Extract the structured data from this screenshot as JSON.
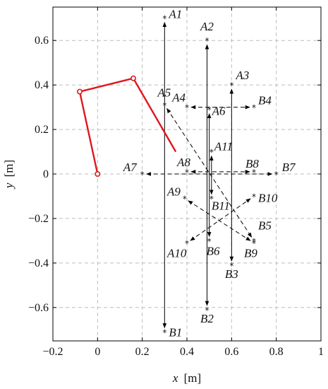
{
  "chart_data": {
    "type": "line",
    "xlabel": "x",
    "ylabel": "y",
    "unit": "[m]",
    "xlim": [
      -0.2,
      1.0
    ],
    "ylim": [
      -0.75,
      0.75
    ],
    "x_ticks": [
      -0.2,
      0,
      0.2,
      0.4,
      0.6,
      0.8,
      1
    ],
    "x_tick_labels": [
      "−0.2",
      "0",
      "0.2",
      "0.4",
      "0.6",
      "0.8",
      "1"
    ],
    "y_ticks": [
      -0.6,
      -0.4,
      -0.2,
      0,
      0.2,
      0.4,
      0.6
    ],
    "y_tick_labels": [
      "−0.6",
      "−0.4",
      "−0.2",
      "0",
      "0.2",
      "0.4",
      "0.6"
    ],
    "grid": true,
    "colors": {
      "arm": "#e0161d",
      "paths": "#000000",
      "grid": "#bdbdbd"
    },
    "arm": {
      "points": [
        [
          0.0,
          0.0
        ],
        [
          -0.08,
          0.37
        ],
        [
          0.16,
          0.43
        ],
        [
          0.35,
          0.1
        ]
      ],
      "joint_markers": [
        [
          0.0,
          0.0
        ],
        [
          -0.08,
          0.37
        ],
        [
          0.16,
          0.43
        ]
      ]
    },
    "points": [
      {
        "name": "A1",
        "x": 0.3,
        "y": 0.7
      },
      {
        "name": "B1",
        "x": 0.3,
        "y": -0.71
      },
      {
        "name": "A2",
        "x": 0.49,
        "y": 0.6
      },
      {
        "name": "B2",
        "x": 0.49,
        "y": -0.61
      },
      {
        "name": "A3",
        "x": 0.6,
        "y": 0.4
      },
      {
        "name": "B3",
        "x": 0.6,
        "y": -0.41
      },
      {
        "name": "A4",
        "x": 0.4,
        "y": 0.3
      },
      {
        "name": "B4",
        "x": 0.7,
        "y": 0.3
      },
      {
        "name": "A5",
        "x": 0.3,
        "y": 0.31
      },
      {
        "name": "B5",
        "x": 0.7,
        "y": -0.3
      },
      {
        "name": "A6",
        "x": 0.5,
        "y": 0.29
      },
      {
        "name": "B6",
        "x": 0.5,
        "y": -0.3
      },
      {
        "name": "A7",
        "x": 0.2,
        "y": 0.0
      },
      {
        "name": "B7",
        "x": 0.8,
        "y": 0.0
      },
      {
        "name": "A8",
        "x": 0.4,
        "y": 0.01
      },
      {
        "name": "B8",
        "x": 0.7,
        "y": 0.01
      },
      {
        "name": "A9",
        "x": 0.39,
        "y": -0.11
      },
      {
        "name": "B9",
        "x": 0.7,
        "y": -0.31
      },
      {
        "name": "A10",
        "x": 0.4,
        "y": -0.31
      },
      {
        "name": "B10",
        "x": 0.7,
        "y": -0.1
      },
      {
        "name": "A11",
        "x": 0.51,
        "y": 0.1
      },
      {
        "name": "B11",
        "x": 0.51,
        "y": -0.11
      }
    ],
    "segments": [
      {
        "from": "A1",
        "to": "B1",
        "style": "solid",
        "arrow": "both"
      },
      {
        "from": "A2",
        "to": "B2",
        "style": "solid",
        "arrow": "both"
      },
      {
        "from": "A3",
        "to": "B3",
        "style": "solid",
        "arrow": "both"
      },
      {
        "from": "A6",
        "to": "B6",
        "style": "solid",
        "arrow": "both"
      },
      {
        "from": "A11",
        "to": "B11",
        "style": "solid",
        "arrow": "both"
      },
      {
        "from": "A4",
        "to": "B4",
        "style": "dashed",
        "arrow": "both"
      },
      {
        "from": "A7",
        "to": "B7",
        "style": "dashed",
        "arrow": "both"
      },
      {
        "from": "A8",
        "to": "B8",
        "style": "dashed",
        "arrow": "both"
      },
      {
        "from": "A5",
        "to": "B5",
        "style": "dashed",
        "arrow": "both"
      },
      {
        "from": "A9",
        "to": "B9",
        "style": "dashed",
        "arrow": "both"
      },
      {
        "from": "A10",
        "to": "B10",
        "style": "dashed",
        "arrow": "both"
      }
    ]
  }
}
